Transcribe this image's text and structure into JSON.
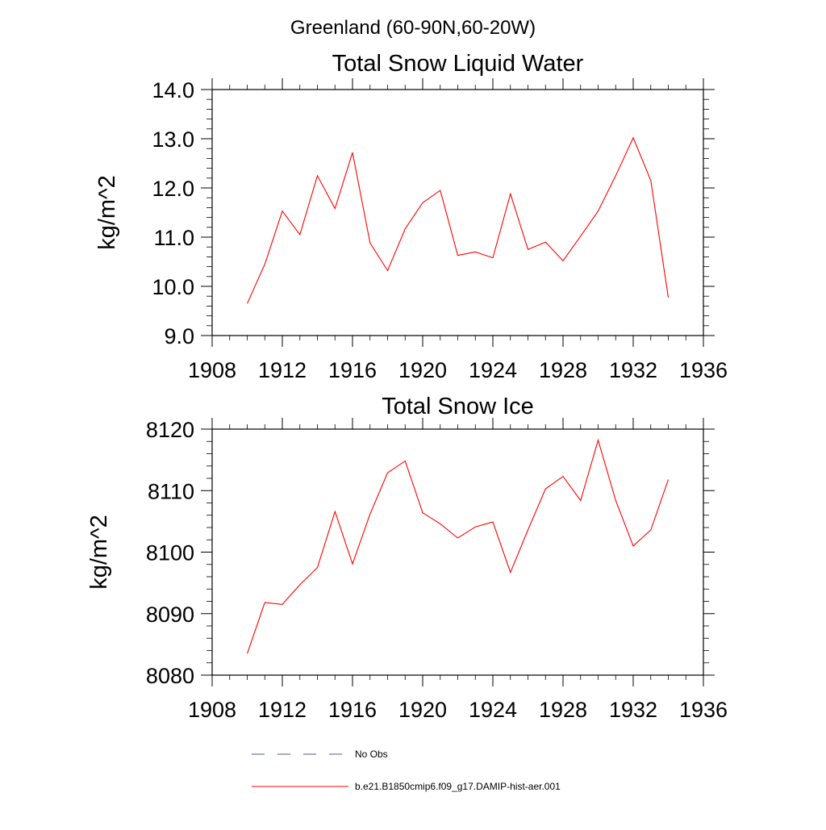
{
  "suptitle": "Greenland (60-90N,60-20W)",
  "chart_data": [
    {
      "type": "line",
      "title": "Total Snow Liquid Water",
      "xlabel": "",
      "ylabel": "kg/m^2",
      "xlim": [
        1908,
        1936
      ],
      "ylim": [
        9.0,
        14.0
      ],
      "xticks": [
        "1908",
        "1912",
        "1916",
        "1920",
        "1924",
        "1928",
        "1932",
        "1936"
      ],
      "yticks": [
        "9.0",
        "10.0",
        "11.0",
        "12.0",
        "13.0",
        "14.0"
      ],
      "grid": false,
      "series": [
        {
          "name": "b.e21.B1850cmip6.f09_g17.DAMIP-hist-aer.001",
          "color": "#ff0000",
          "x": [
            1910,
            1911,
            1912,
            1913,
            1914,
            1915,
            1916,
            1917,
            1918,
            1919,
            1920,
            1921,
            1922,
            1923,
            1924,
            1925,
            1926,
            1927,
            1928,
            1929,
            1930,
            1931,
            1932,
            1933,
            1934
          ],
          "y": [
            9.65,
            10.45,
            11.53,
            11.05,
            12.25,
            11.58,
            12.72,
            10.88,
            10.32,
            11.17,
            11.7,
            11.95,
            10.63,
            10.7,
            10.58,
            11.88,
            10.75,
            10.9,
            10.52,
            11.02,
            11.53,
            12.25,
            13.02,
            12.15,
            9.77
          ]
        }
      ]
    },
    {
      "type": "line",
      "title": "Total Snow Ice",
      "xlabel": "",
      "ylabel": "kg/m^2",
      "xlim": [
        1908,
        1936
      ],
      "ylim": [
        8080,
        8120
      ],
      "xticks": [
        "1908",
        "1912",
        "1916",
        "1920",
        "1924",
        "1928",
        "1932",
        "1936"
      ],
      "yticks": [
        "8080",
        "8090",
        "8100",
        "8110",
        "8120"
      ],
      "grid": false,
      "series": [
        {
          "name": "b.e21.B1850cmip6.f09_g17.DAMIP-hist-aer.001",
          "color": "#ff0000",
          "x": [
            1910,
            1911,
            1912,
            1913,
            1914,
            1915,
            1916,
            1917,
            1918,
            1919,
            1920,
            1921,
            1922,
            1923,
            1924,
            1925,
            1926,
            1927,
            1928,
            1929,
            1930,
            1931,
            1932,
            1933,
            1934
          ],
          "y": [
            8083.5,
            8091.8,
            8091.5,
            8094.7,
            8097.5,
            8106.6,
            8098.1,
            8106.2,
            8112.9,
            8114.8,
            8106.4,
            8104.6,
            8102.3,
            8104.1,
            8104.9,
            8096.7,
            8103.6,
            8110.3,
            8112.3,
            8108.4,
            8118.2,
            8108.4,
            8101.0,
            8103.6,
            8111.8
          ]
        }
      ]
    }
  ],
  "legend": {
    "placement": "bottom",
    "entries": [
      {
        "label": "No Obs",
        "color": "#4a5a8a",
        "style": "dashed"
      },
      {
        "label": "b.e21.B1850cmip6.f09_g17.DAMIP-hist-aer.001",
        "color": "#ff0000",
        "style": "solid"
      }
    ]
  }
}
